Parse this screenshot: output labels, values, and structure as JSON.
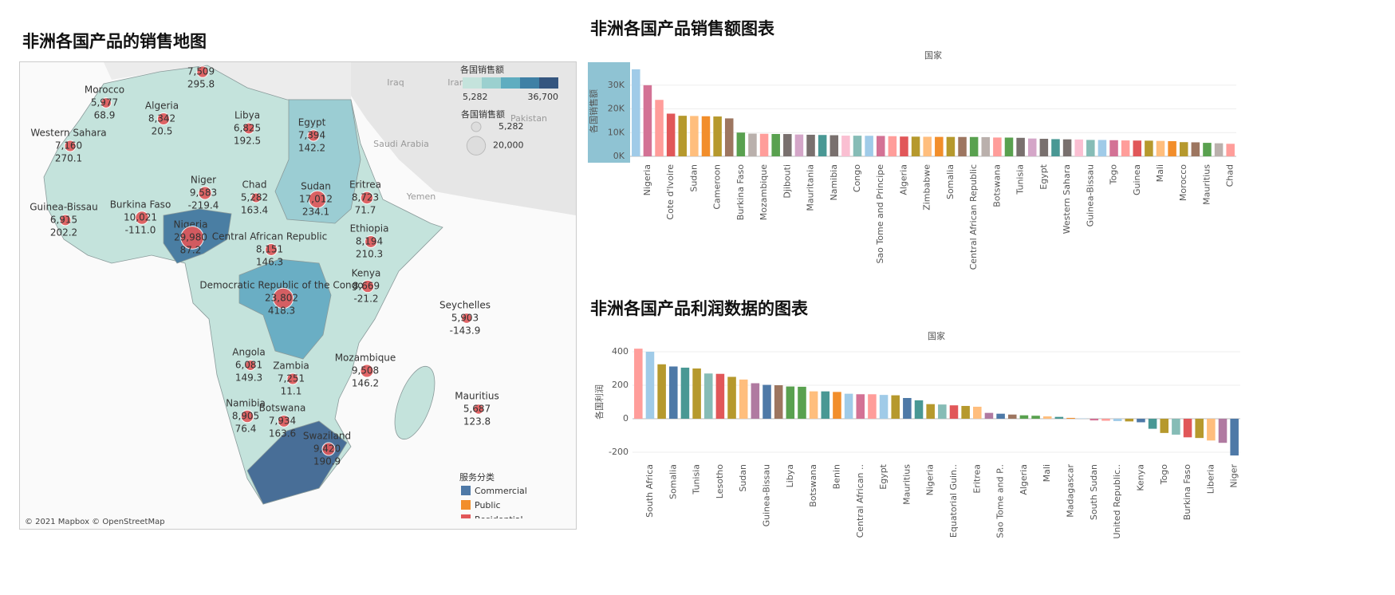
{
  "chart_data": [
    {
      "type": "map",
      "title": "非洲各国产品的销售地图",
      "attribution": "© 2021 Mapbox © OpenStreetMap",
      "background_labels": [
        "Iraq",
        "Iran",
        "Saudi Arabia",
        "Yemen",
        "Pakistan"
      ],
      "color_legend": {
        "title": "各国销售额",
        "range": [
          5282,
          36700
        ],
        "range_labels": [
          "5,282",
          "36,700"
        ],
        "colors": [
          "#c4e3dc",
          "#9bd0cf",
          "#5fadc0",
          "#3f80a5",
          "#35567f"
        ]
      },
      "size_legend": {
        "title": "各国销售额",
        "values": [
          5282,
          20000
        ],
        "labels": [
          "5,282",
          "20,000"
        ]
      },
      "category_legend": {
        "title": "服务分类",
        "series": [
          {
            "name": "Commercial",
            "color": "#4e79a7"
          },
          {
            "name": "Public",
            "color": "#f28e2b"
          },
          {
            "name": "Residential",
            "color": "#e15759"
          }
        ]
      },
      "points": [
        {
          "name": null,
          "sales": 7509,
          "sales_label": "7,509",
          "profit": 295.8
        },
        {
          "name": "Morocco",
          "sales": 5977,
          "sales_label": "5,977",
          "profit": 68.9
        },
        {
          "name": "Algeria",
          "sales": 8342,
          "sales_label": "8,342",
          "profit": 20.5
        },
        {
          "name": "Libya",
          "sales": 6825,
          "sales_label": "6,825",
          "profit": 192.5
        },
        {
          "name": "Egypt",
          "sales": 7394,
          "sales_label": "7,394",
          "profit": 142.2
        },
        {
          "name": "Western Sahara",
          "sales": 7160,
          "sales_label": "7,160",
          "profit": 270.1
        },
        {
          "name": "Niger",
          "sales": 9583,
          "sales_label": "9,583",
          "profit": -219.4
        },
        {
          "name": "Chad",
          "sales": 5282,
          "sales_label": "5,282",
          "profit": 163.4
        },
        {
          "name": "Sudan",
          "sales": 17012,
          "sales_label": "17,012",
          "profit": 234.1
        },
        {
          "name": "Eritrea",
          "sales": 8723,
          "sales_label": "8,723",
          "profit": 71.7
        },
        {
          "name": "Guinea-Bissau",
          "sales": 6915,
          "sales_label": "6,915",
          "profit": 202.2
        },
        {
          "name": "Burkina Faso",
          "sales": 10021,
          "sales_label": "10,021",
          "profit": -111,
          "profit_label": "-111.0"
        },
        {
          "name": "Nigeria",
          "sales": 29980,
          "sales_label": "29,980",
          "profit": 87.2
        },
        {
          "name": "Central African Republic",
          "sales": 8151,
          "sales_label": "8,151",
          "profit": 146.3
        },
        {
          "name": "Ethiopia",
          "sales": 8194,
          "sales_label": "8,194",
          "profit": 210.3
        },
        {
          "name": "Kenya",
          "sales": 8669,
          "sales_label": "8,669",
          "profit": -21.2
        },
        {
          "name": "Democratic Republic of the Congo",
          "sales": 23802,
          "sales_label": "23,802",
          "profit": 418.3
        },
        {
          "name": "Seychelles",
          "sales": 5903,
          "sales_label": "5,903",
          "profit": -143.9
        },
        {
          "name": "Angola",
          "sales": 6081,
          "sales_label": "6,081",
          "profit": 149.3
        },
        {
          "name": "Zambia",
          "sales": 7251,
          "sales_label": "7,251",
          "profit": 11.1
        },
        {
          "name": "Mozambique",
          "sales": 9508,
          "sales_label": "9,508",
          "profit": 146.2
        },
        {
          "name": "Mauritius",
          "sales": 5687,
          "sales_label": "5,687",
          "profit": 123.8
        },
        {
          "name": "Namibia",
          "sales": 8905,
          "sales_label": "8,905",
          "profit": 76.4
        },
        {
          "name": "Botswana",
          "sales": 7934,
          "sales_label": "7,934",
          "profit": 163.6
        },
        {
          "name": "Swaziland",
          "sales": 9420,
          "sales_label": "9,420",
          "profit": 190.9
        }
      ]
    },
    {
      "type": "bar",
      "title": "非洲各国产品销售额图表",
      "header": "国家",
      "y_label": "各国销售额",
      "categories": [
        null,
        "Nigeria",
        null,
        "Cote d'Ivoire",
        null,
        "Sudan",
        null,
        "Cameroon",
        null,
        "Burkina Faso",
        null,
        "Mozambique",
        null,
        "Djibouti",
        null,
        "Mauritania",
        null,
        "Namibia",
        null,
        "Congo",
        null,
        "Sao Tome and Principe",
        null,
        "Algeria",
        null,
        "Zimbabwe",
        null,
        "Somalia",
        null,
        "Central African Republic",
        null,
        "Botswana",
        null,
        "Tunisia",
        null,
        "Egypt",
        null,
        "Western Sahara",
        null,
        "Guinea-Bissau",
        null,
        "Togo",
        null,
        "Guinea",
        null,
        "Mali",
        null,
        "Morocco",
        null,
        "Mauritius",
        null,
        "Chad"
      ],
      "values": [
        36700,
        29980,
        23802,
        18000,
        17100,
        17012,
        16900,
        16800,
        16000,
        10021,
        9583,
        9508,
        9420,
        9400,
        9200,
        9100,
        9000,
        8905,
        8723,
        8700,
        8669,
        8600,
        8500,
        8342,
        8300,
        8250,
        8194,
        8180,
        8160,
        8151,
        8100,
        7934,
        7900,
        7800,
        7509,
        7394,
        7251,
        7160,
        7100,
        6915,
        6900,
        6800,
        6700,
        6650,
        6600,
        6500,
        6400,
        5977,
        5903,
        5687,
        5500,
        5282
      ],
      "palette": [
        "#a0cbe8",
        "#d37295",
        "#ff9d9a",
        "#e15759",
        "#b6992d",
        "#ffbe7d",
        "#f28e2b",
        "#b6992d",
        "#9d7660",
        "#59a14f",
        "#bab0ac",
        "#ff9d9a",
        "#59a14f",
        "#79706e",
        "#d4a6c8",
        "#79706e",
        "#499894",
        "#79706e",
        "#fabfd2",
        "#86bcb6"
      ],
      "ylim": [
        0,
        38000
      ],
      "yticks": [
        {
          "value": 0,
          "label": "0K"
        },
        {
          "value": 10000,
          "label": "10K"
        },
        {
          "value": 20000,
          "label": "20K"
        },
        {
          "value": 30000,
          "label": "30K"
        }
      ],
      "grid": true
    },
    {
      "type": "bar",
      "title": "非洲各国产品利润数据的图表",
      "header": "国家",
      "y_label": "各国利润",
      "categories": [
        null,
        "South Africa",
        null,
        "Somalia",
        null,
        "Tunisia",
        null,
        "Lesotho",
        null,
        "Sudan",
        null,
        "Guinea-Bissau",
        null,
        "Libya",
        null,
        "Botswana",
        null,
        "Benin",
        null,
        "Central African ..",
        null,
        "Egypt",
        null,
        "Mauritius",
        null,
        "Nigeria",
        null,
        "Equatorial Guin..",
        null,
        "Eritrea",
        null,
        "Sao Tome and P..",
        null,
        "Algeria",
        null,
        "Mali",
        null,
        "Madagascar",
        null,
        "South Sudan",
        null,
        "United Republic..",
        null,
        "Kenya",
        null,
        "Togo",
        null,
        "Burkina Faso",
        null,
        "Liberia",
        null,
        "Niger"
      ],
      "values": [
        418.3,
        400,
        325,
        312,
        305,
        300,
        270.1,
        268,
        250,
        234.1,
        212,
        202.2,
        200,
        192.5,
        190.9,
        163.6,
        163.4,
        160,
        149.3,
        146.3,
        146.2,
        142.2,
        140,
        123.8,
        110,
        87.2,
        85,
        80,
        76.4,
        71.7,
        35,
        30,
        25,
        20.5,
        18,
        14,
        11.1,
        5,
        2,
        -10,
        -12,
        -14,
        -16,
        -21.2,
        -60,
        -85,
        -95,
        -111,
        -115,
        -130,
        -143.9,
        -219.4
      ],
      "palette": [
        "#ff9d9a",
        "#a0cbe8",
        "#b6992d",
        "#4e79a7",
        "#499894",
        "#b6992d",
        "#86bcb6",
        "#e15759",
        "#b6992d",
        "#ffbe7d",
        "#b07aa1",
        "#4e79a7",
        "#9d7660",
        "#59a14f",
        "#59a14f",
        "#ffbe7d",
        "#499894",
        "#f28e2b",
        "#a0cbe8",
        "#d37295"
      ],
      "ylim": [
        -250,
        450
      ],
      "yticks": [
        -200,
        0,
        200,
        400
      ],
      "grid": true
    }
  ]
}
